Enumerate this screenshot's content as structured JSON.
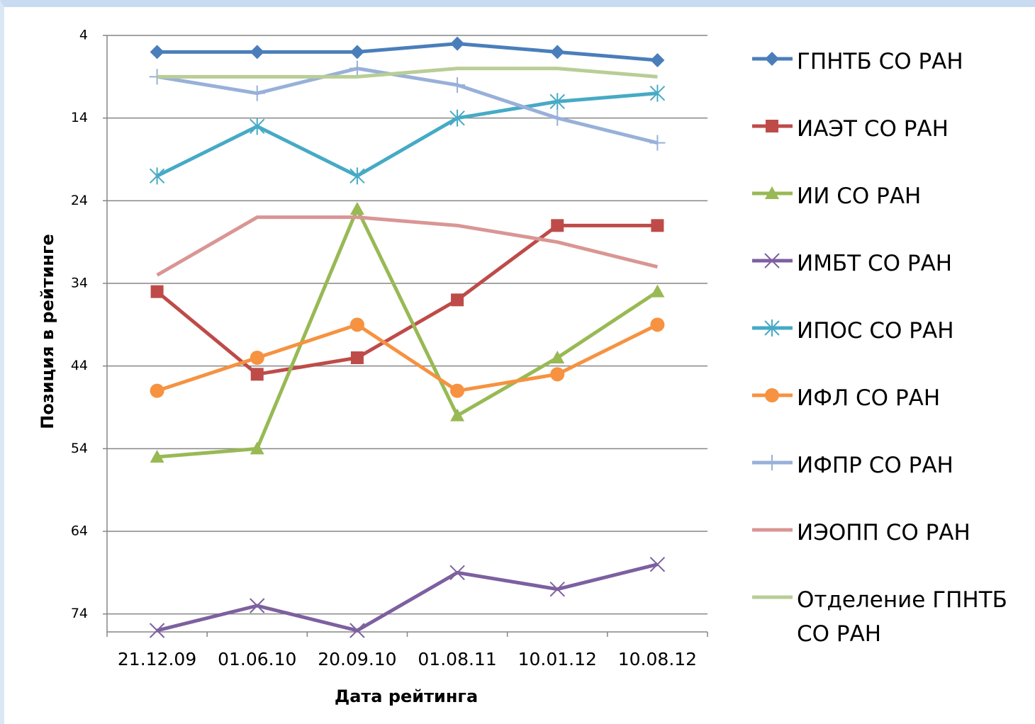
{
  "chart_data": {
    "type": "line",
    "x_label": "Дата рейтинга",
    "y_label": "Позиция в рейтинге",
    "categories": [
      "21.12.09",
      "01.06.10",
      "20.09.10",
      "01.08.11",
      "10.01.12",
      "10.08.12"
    ],
    "ylim": [
      4,
      76
    ],
    "y_reversed": true,
    "yticks": [
      4,
      14,
      24,
      34,
      44,
      54,
      64,
      74
    ],
    "grid": true,
    "legend": "right",
    "series": [
      {
        "name": "ГПНТБ СО РАН",
        "color": "#4a7ebb",
        "marker": "diamond",
        "values": [
          6,
          6,
          6,
          5,
          6,
          7
        ]
      },
      {
        "name": "ИАЭТ СО РАН",
        "color": "#be4b48",
        "marker": "square",
        "values": [
          35,
          45,
          43,
          36,
          27,
          27
        ]
      },
      {
        "name": "ИИ СО РАН",
        "color": "#98b954",
        "marker": "triangle",
        "values": [
          55,
          54,
          25,
          50,
          43,
          35
        ]
      },
      {
        "name": "ИМБТ СО РАН",
        "color": "#7d60a0",
        "marker": "x",
        "values": [
          76,
          73,
          76,
          69,
          71,
          68
        ]
      },
      {
        "name": "ИПОС СО РАН",
        "color": "#46aac5",
        "marker": "star",
        "values": [
          21,
          15,
          21,
          14,
          12,
          11
        ]
      },
      {
        "name": "ИФЛ СО РАН",
        "color": "#f69240",
        "marker": "circle",
        "values": [
          47,
          43,
          39,
          47,
          45,
          39
        ]
      },
      {
        "name": "ИФПР СО РАН",
        "color": "#98b0d9",
        "marker": "plus",
        "values": [
          9,
          11,
          8,
          10,
          14,
          17
        ]
      },
      {
        "name": "ИЭОПП СО РАН",
        "color": "#d99694",
        "marker": "none",
        "values": [
          33,
          26,
          26,
          27,
          29,
          32
        ]
      },
      {
        "name": "Отделение ГПНТБ СО РАН",
        "color": "#b9cd96",
        "marker": "none",
        "values": [
          9,
          9,
          9,
          8,
          8,
          9
        ]
      }
    ]
  }
}
